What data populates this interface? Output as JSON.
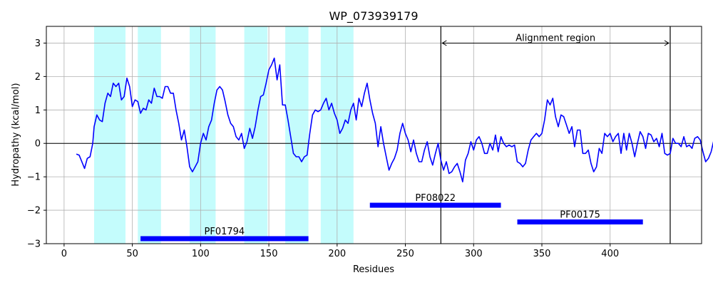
{
  "chart_data": {
    "type": "line",
    "title": "WP_073939179",
    "xlabel": "Residues",
    "ylabel": "Hydropathy (kcal/mol)",
    "xlim": [
      -13,
      467
    ],
    "ylim": [
      -3,
      3.5
    ],
    "x_ticks": [
      0,
      50,
      100,
      150,
      200,
      250,
      300,
      350,
      400
    ],
    "y_ticks": [
      -3,
      -2,
      -1,
      0,
      1,
      2,
      3
    ],
    "grid": true,
    "series": [
      {
        "color": "#0000ff",
        "points": [
          [
            9,
            -0.32
          ],
          [
            11,
            -0.35
          ],
          [
            13,
            -0.55
          ],
          [
            15,
            -0.75
          ],
          [
            17,
            -0.45
          ],
          [
            19,
            -0.4
          ],
          [
            21,
            0.0
          ],
          [
            22,
            0.5
          ],
          [
            24,
            0.85
          ],
          [
            26,
            0.7
          ],
          [
            28,
            0.65
          ],
          [
            30,
            1.2
          ],
          [
            32,
            1.5
          ],
          [
            34,
            1.4
          ],
          [
            36,
            1.8
          ],
          [
            38,
            1.7
          ],
          [
            40,
            1.8
          ],
          [
            42,
            1.3
          ],
          [
            44,
            1.4
          ],
          [
            46,
            1.95
          ],
          [
            48,
            1.7
          ],
          [
            50,
            1.1
          ],
          [
            52,
            1.3
          ],
          [
            54,
            1.25
          ],
          [
            56,
            0.9
          ],
          [
            58,
            1.05
          ],
          [
            60,
            1.0
          ],
          [
            62,
            1.3
          ],
          [
            64,
            1.2
          ],
          [
            66,
            1.65
          ],
          [
            68,
            1.4
          ],
          [
            70,
            1.4
          ],
          [
            72,
            1.35
          ],
          [
            74,
            1.7
          ],
          [
            76,
            1.7
          ],
          [
            78,
            1.5
          ],
          [
            80,
            1.5
          ],
          [
            82,
            1.0
          ],
          [
            84,
            0.6
          ],
          [
            86,
            0.1
          ],
          [
            88,
            0.4
          ],
          [
            90,
            -0.1
          ],
          [
            92,
            -0.7
          ],
          [
            94,
            -0.85
          ],
          [
            96,
            -0.7
          ],
          [
            98,
            -0.55
          ],
          [
            100,
            0.0
          ],
          [
            102,
            0.3
          ],
          [
            104,
            0.1
          ],
          [
            106,
            0.5
          ],
          [
            108,
            0.7
          ],
          [
            110,
            1.2
          ],
          [
            112,
            1.6
          ],
          [
            114,
            1.7
          ],
          [
            116,
            1.6
          ],
          [
            118,
            1.25
          ],
          [
            120,
            0.85
          ],
          [
            122,
            0.6
          ],
          [
            124,
            0.5
          ],
          [
            126,
            0.2
          ],
          [
            128,
            0.1
          ],
          [
            130,
            0.3
          ],
          [
            132,
            -0.15
          ],
          [
            134,
            0.05
          ],
          [
            136,
            0.45
          ],
          [
            138,
            0.15
          ],
          [
            140,
            0.5
          ],
          [
            142,
            1.0
          ],
          [
            144,
            1.4
          ],
          [
            146,
            1.45
          ],
          [
            148,
            1.8
          ],
          [
            150,
            2.2
          ],
          [
            152,
            2.35
          ],
          [
            154,
            2.55
          ],
          [
            156,
            1.9
          ],
          [
            158,
            2.35
          ],
          [
            160,
            1.15
          ],
          [
            162,
            1.15
          ],
          [
            164,
            0.7
          ],
          [
            166,
            0.2
          ],
          [
            168,
            -0.3
          ],
          [
            170,
            -0.4
          ],
          [
            172,
            -0.4
          ],
          [
            174,
            -0.55
          ],
          [
            176,
            -0.4
          ],
          [
            178,
            -0.35
          ],
          [
            180,
            0.3
          ],
          [
            182,
            0.85
          ],
          [
            184,
            1.0
          ],
          [
            186,
            0.95
          ],
          [
            188,
            1.0
          ],
          [
            190,
            1.2
          ],
          [
            192,
            1.35
          ],
          [
            194,
            1.0
          ],
          [
            196,
            1.2
          ],
          [
            198,
            0.9
          ],
          [
            200,
            0.7
          ],
          [
            202,
            0.3
          ],
          [
            204,
            0.45
          ],
          [
            206,
            0.7
          ],
          [
            208,
            0.6
          ],
          [
            210,
            1.0
          ],
          [
            212,
            1.2
          ],
          [
            214,
            0.7
          ],
          [
            216,
            1.35
          ],
          [
            218,
            1.1
          ],
          [
            220,
            1.5
          ],
          [
            222,
            1.8
          ],
          [
            224,
            1.3
          ],
          [
            226,
            0.9
          ],
          [
            228,
            0.6
          ],
          [
            230,
            -0.1
          ],
          [
            232,
            0.5
          ],
          [
            234,
            0.0
          ],
          [
            236,
            -0.4
          ],
          [
            238,
            -0.8
          ],
          [
            240,
            -0.6
          ],
          [
            242,
            -0.45
          ],
          [
            244,
            -0.2
          ],
          [
            246,
            0.3
          ],
          [
            248,
            0.6
          ],
          [
            250,
            0.3
          ],
          [
            252,
            0.1
          ],
          [
            254,
            -0.25
          ],
          [
            256,
            0.1
          ],
          [
            258,
            -0.3
          ],
          [
            260,
            -0.55
          ],
          [
            262,
            -0.55
          ],
          [
            264,
            -0.2
          ],
          [
            266,
            0.05
          ],
          [
            268,
            -0.4
          ],
          [
            270,
            -0.65
          ],
          [
            272,
            -0.3
          ],
          [
            274,
            0.0
          ],
          [
            276,
            -0.5
          ],
          [
            278,
            -0.8
          ],
          [
            280,
            -0.55
          ],
          [
            282,
            -0.9
          ],
          [
            284,
            -0.85
          ],
          [
            286,
            -0.7
          ],
          [
            288,
            -0.6
          ],
          [
            290,
            -0.85
          ],
          [
            292,
            -1.15
          ],
          [
            294,
            -0.5
          ],
          [
            296,
            -0.3
          ],
          [
            298,
            0.05
          ],
          [
            300,
            -0.2
          ],
          [
            302,
            0.1
          ],
          [
            304,
            0.2
          ],
          [
            306,
            0.0
          ],
          [
            308,
            -0.3
          ],
          [
            310,
            -0.3
          ],
          [
            312,
            0.0
          ],
          [
            314,
            -0.2
          ],
          [
            316,
            0.25
          ],
          [
            318,
            -0.25
          ],
          [
            320,
            0.2
          ],
          [
            322,
            0.0
          ],
          [
            324,
            -0.1
          ],
          [
            326,
            -0.05
          ],
          [
            328,
            -0.1
          ],
          [
            330,
            -0.05
          ],
          [
            332,
            -0.55
          ],
          [
            334,
            -0.6
          ],
          [
            336,
            -0.7
          ],
          [
            338,
            -0.6
          ],
          [
            340,
            -0.2
          ],
          [
            342,
            0.1
          ],
          [
            344,
            0.2
          ],
          [
            346,
            0.3
          ],
          [
            348,
            0.2
          ],
          [
            350,
            0.3
          ],
          [
            352,
            0.7
          ],
          [
            354,
            1.3
          ],
          [
            356,
            1.15
          ],
          [
            358,
            1.35
          ],
          [
            360,
            0.8
          ],
          [
            362,
            0.5
          ],
          [
            364,
            0.85
          ],
          [
            366,
            0.8
          ],
          [
            368,
            0.55
          ],
          [
            370,
            0.3
          ],
          [
            372,
            0.5
          ],
          [
            374,
            -0.1
          ],
          [
            376,
            0.4
          ],
          [
            378,
            0.4
          ],
          [
            380,
            -0.3
          ],
          [
            382,
            -0.3
          ],
          [
            384,
            -0.2
          ],
          [
            386,
            -0.6
          ],
          [
            388,
            -0.85
          ],
          [
            390,
            -0.7
          ],
          [
            392,
            -0.15
          ],
          [
            394,
            -0.3
          ],
          [
            396,
            0.3
          ],
          [
            398,
            0.2
          ],
          [
            400,
            0.3
          ],
          [
            402,
            0.05
          ],
          [
            404,
            0.2
          ],
          [
            406,
            0.3
          ],
          [
            408,
            -0.3
          ],
          [
            410,
            0.3
          ],
          [
            412,
            -0.2
          ],
          [
            414,
            0.3
          ],
          [
            416,
            0.0
          ],
          [
            418,
            -0.4
          ],
          [
            420,
            0.0
          ],
          [
            422,
            0.35
          ],
          [
            424,
            0.2
          ],
          [
            426,
            -0.15
          ],
          [
            428,
            0.3
          ],
          [
            430,
            0.25
          ],
          [
            432,
            0.05
          ],
          [
            434,
            0.15
          ],
          [
            436,
            -0.1
          ],
          [
            438,
            0.3
          ],
          [
            440,
            -0.3
          ],
          [
            442,
            -0.35
          ],
          [
            444,
            -0.3
          ],
          [
            446,
            0.15
          ],
          [
            448,
            0.0
          ],
          [
            450,
            0.0
          ],
          [
            452,
            -0.1
          ],
          [
            454,
            0.2
          ],
          [
            456,
            -0.1
          ],
          [
            458,
            -0.05
          ],
          [
            460,
            -0.15
          ],
          [
            462,
            0.15
          ],
          [
            464,
            0.2
          ],
          [
            466,
            0.1
          ],
          [
            468,
            -0.25
          ],
          [
            470,
            -0.55
          ],
          [
            472,
            -0.45
          ],
          [
            474,
            -0.25
          ],
          [
            476,
            0.1
          ],
          [
            478,
            0.15
          ]
        ]
      }
    ],
    "shaded_regions": [
      [
        22,
        45
      ],
      [
        54,
        71
      ],
      [
        92,
        111
      ],
      [
        132,
        149
      ],
      [
        162,
        179
      ],
      [
        188,
        212
      ]
    ],
    "domains": [
      {
        "label": "PF01794",
        "start": 56,
        "end": 179,
        "y": -2.85
      },
      {
        "label": "PF08022",
        "start": 224,
        "end": 320,
        "y": -1.85
      },
      {
        "label": "PF00175",
        "start": 332,
        "end": 424,
        "y": -2.35
      }
    ],
    "vertical_lines": [
      276,
      444
    ],
    "annotation": {
      "text": "Alignment region",
      "x_start": 276,
      "x_end": 444,
      "y": 3.0,
      "text_y": 3.15
    }
  }
}
